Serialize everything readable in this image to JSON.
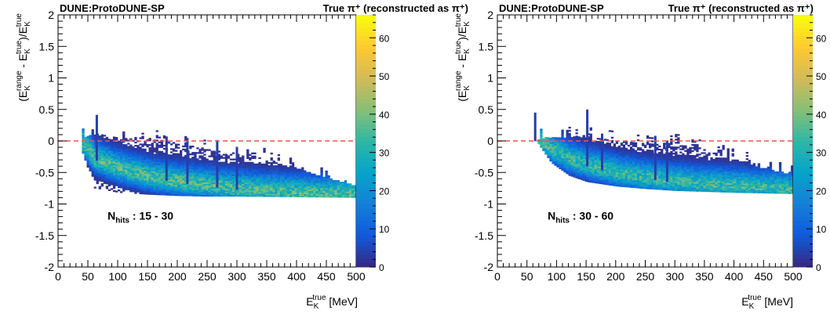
{
  "colors": {
    "dashed_line": "#ff4d4d",
    "frame": "#000000",
    "palette": [
      "#352a87",
      "#0f5cdd",
      "#1481d6",
      "#06a4ca",
      "#2eb7a4",
      "#87bf77",
      "#d1bb59",
      "#fec832",
      "#f9fb0e"
    ]
  },
  "chart_data": [
    {
      "type": "heatmap",
      "experiment_label": "DUNE:ProtoDUNE-SP",
      "selection_label": "True π⁺ (reconstructed as π⁺)",
      "annotation": {
        "text": "N",
        "sub": "hits",
        "rest": " : 15 - 30"
      },
      "ylabel": {
        "pre": "(E",
        "sub1": "K",
        "sup1": "range",
        "mid": " - E",
        "sub2": "K",
        "sup2": "true",
        "div": ")/E",
        "sub3": "K",
        "sup3": "true"
      },
      "xlabel": {
        "main": "E",
        "sub": "K",
        "sup": "true",
        "unit": " [MeV]"
      },
      "xlim": [
        0,
        500
      ],
      "ylim": [
        -2,
        2
      ],
      "zlim": [
        0,
        66
      ],
      "x_ticks": [
        "0",
        "50",
        "100",
        "150",
        "200",
        "250",
        "300",
        "350",
        "400",
        "450",
        "500"
      ],
      "y_ticks": [
        "-2",
        "-1.5",
        "-1",
        "-0.5",
        "0",
        "0.5",
        "1",
        "1.5",
        "2"
      ],
      "z_ticks": [
        "0",
        "10",
        "20",
        "30",
        "40",
        "50",
        "60"
      ],
      "reference_line_y": 0,
      "x_start": 40,
      "band_profile": [
        [
          40,
          -0.05
        ],
        [
          60,
          -0.3
        ],
        [
          100,
          -0.45
        ],
        [
          150,
          -0.58
        ],
        [
          200,
          -0.66
        ],
        [
          250,
          -0.72
        ],
        [
          300,
          -0.77
        ],
        [
          350,
          -0.8
        ],
        [
          400,
          -0.83
        ],
        [
          450,
          -0.85
        ],
        [
          500,
          -0.86
        ]
      ],
      "lower_edge": [
        [
          40,
          -0.2
        ],
        [
          60,
          -0.75
        ],
        [
          100,
          -0.82
        ],
        [
          150,
          -0.85
        ],
        [
          200,
          -0.87
        ],
        [
          250,
          -0.88
        ],
        [
          300,
          -0.88
        ],
        [
          400,
          -0.89
        ],
        [
          500,
          -0.9
        ]
      ],
      "upper_edge": [
        [
          40,
          0.05
        ],
        [
          60,
          0.1
        ],
        [
          100,
          0.05
        ],
        [
          150,
          0.03
        ],
        [
          200,
          -0.05
        ],
        [
          250,
          -0.15
        ],
        [
          300,
          -0.22
        ],
        [
          350,
          -0.3
        ],
        [
          400,
          -0.45
        ],
        [
          450,
          -0.6
        ],
        [
          500,
          -0.72
        ]
      ],
      "spikes": [
        [
          63,
          0.4
        ],
        [
          180,
          0.05
        ],
        [
          215,
          0.04
        ],
        [
          265,
          0.0
        ],
        [
          298,
          -0.1
        ]
      ],
      "peak_density": 45
    },
    {
      "type": "heatmap",
      "experiment_label": "DUNE:ProtoDUNE-SP",
      "selection_label": "True π⁺ (reconstructed as π⁺)",
      "annotation": {
        "text": "N",
        "sub": "hits",
        "rest": " : 30 - 60"
      },
      "ylabel": {
        "pre": "(E",
        "sub1": "K",
        "sup1": "range",
        "mid": " - E",
        "sub2": "K",
        "sup2": "true",
        "div": ")/E",
        "sub3": "K",
        "sup3": "true"
      },
      "xlabel": {
        "main": "E",
        "sub": "K",
        "sup": "true",
        "unit": " [MeV]"
      },
      "xlim": [
        0,
        500
      ],
      "ylim": [
        -2,
        2
      ],
      "zlim": [
        0,
        66
      ],
      "x_ticks": [
        "0",
        "50",
        "100",
        "150",
        "200",
        "250",
        "300",
        "350",
        "400",
        "450",
        "500"
      ],
      "y_ticks": [
        "-2",
        "-1.5",
        "-1",
        "-0.5",
        "0",
        "0.5",
        "1",
        "1.5",
        "2"
      ],
      "z_ticks": [
        "0",
        "10",
        "20",
        "30",
        "40",
        "50",
        "60"
      ],
      "reference_line_y": 0,
      "x_start": 68,
      "band_profile": [
        [
          68,
          0.0
        ],
        [
          90,
          -0.15
        ],
        [
          120,
          -0.3
        ],
        [
          150,
          -0.4
        ],
        [
          200,
          -0.52
        ],
        [
          250,
          -0.6
        ],
        [
          300,
          -0.66
        ],
        [
          350,
          -0.7
        ],
        [
          400,
          -0.73
        ],
        [
          450,
          -0.76
        ],
        [
          500,
          -0.78
        ]
      ],
      "lower_edge": [
        [
          68,
          -0.05
        ],
        [
          90,
          -0.35
        ],
        [
          120,
          -0.55
        ],
        [
          150,
          -0.65
        ],
        [
          200,
          -0.72
        ],
        [
          250,
          -0.76
        ],
        [
          300,
          -0.79
        ],
        [
          400,
          -0.82
        ],
        [
          500,
          -0.84
        ]
      ],
      "upper_edge": [
        [
          68,
          0.02
        ],
        [
          90,
          0.05
        ],
        [
          150,
          0.05
        ],
        [
          200,
          0.0
        ],
        [
          250,
          -0.05
        ],
        [
          300,
          -0.05
        ],
        [
          350,
          -0.15
        ],
        [
          400,
          -0.3
        ],
        [
          450,
          -0.45
        ],
        [
          500,
          -0.55
        ]
      ],
      "spikes": [
        [
          62,
          0.45
        ],
        [
          150,
          0.5
        ],
        [
          175,
          0.1
        ],
        [
          265,
          0.08
        ],
        [
          285,
          0.0
        ]
      ],
      "peak_density": 42
    }
  ]
}
